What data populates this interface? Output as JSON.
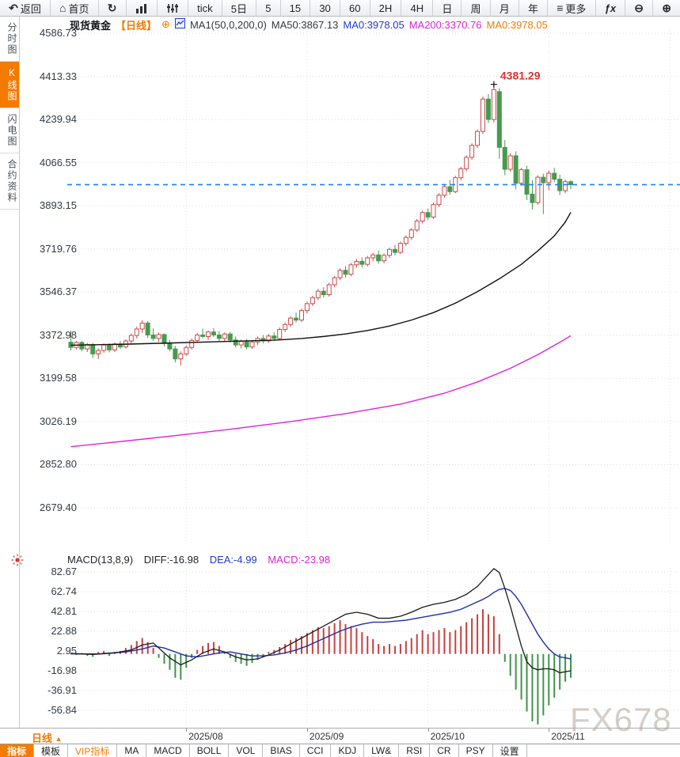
{
  "toolbar": {
    "items": [
      {
        "id": "back",
        "label": "返回",
        "icon": "back-icon"
      },
      {
        "id": "home",
        "label": "首页",
        "icon": "home-icon"
      },
      {
        "id": "refresh",
        "label": "",
        "icon": "refresh-icon"
      },
      {
        "id": "chart-type-bar",
        "label": "",
        "icon": "bar-chart-icon"
      },
      {
        "id": "chart-type-kline",
        "label": "",
        "icon": "kline-icon"
      },
      {
        "id": "tick",
        "label": "tick"
      },
      {
        "id": "5d",
        "label": "5日"
      },
      {
        "id": "5m",
        "label": "5"
      },
      {
        "id": "15m",
        "label": "15"
      },
      {
        "id": "30m",
        "label": "30"
      },
      {
        "id": "60m",
        "label": "60"
      },
      {
        "id": "2h",
        "label": "2H"
      },
      {
        "id": "4h",
        "label": "4H"
      },
      {
        "id": "day",
        "label": "日"
      },
      {
        "id": "week",
        "label": "周"
      },
      {
        "id": "month",
        "label": "月"
      },
      {
        "id": "year",
        "label": "年"
      },
      {
        "id": "more",
        "label": "更多",
        "icon": "menu-icon"
      },
      {
        "id": "formula",
        "label": "ƒx"
      },
      {
        "id": "zoom-out",
        "label": "",
        "icon": "zoom-out-icon"
      },
      {
        "id": "zoom-in",
        "label": "",
        "icon": "zoom-in-icon"
      }
    ]
  },
  "sidebar": {
    "items": [
      {
        "id": "time-share",
        "label": "分时图",
        "active": false
      },
      {
        "id": "kline",
        "label": "K线图",
        "active": true
      },
      {
        "id": "lightning",
        "label": "闪电图",
        "active": false
      },
      {
        "id": "contract-info",
        "label": "合约资料",
        "active": false
      }
    ]
  },
  "chart_header": {
    "symbol": "现货黄金",
    "period_tag": "【日线】",
    "ma_settings": "MA1(50,0,200,0)",
    "ma50_label": "MA50:3867.13",
    "ma0_blue": "MA0:3978.05",
    "ma200_label": "MA200:3370.76",
    "ma0_orange": "MA0:3978.05"
  },
  "macd_header": {
    "title": "MACD(13,8,9)",
    "diff_label": "DIFF:-16.98",
    "dea_label": "DEA:-4.99",
    "macd_label": "MACD:-23.98"
  },
  "bottom_axis": {
    "period_label": "日线",
    "watermark": "FX678"
  },
  "indicator_tabs": {
    "items": [
      {
        "id": "indicator",
        "label": "指标",
        "state": "active"
      },
      {
        "id": "template",
        "label": "模板",
        "state": "normal"
      },
      {
        "id": "vip-indicator",
        "label": "VIP指标",
        "state": "vip"
      },
      {
        "id": "ma",
        "label": "MA",
        "state": "normal"
      },
      {
        "id": "macd",
        "label": "MACD",
        "state": "normal"
      },
      {
        "id": "boll",
        "label": "BOLL",
        "state": "normal"
      },
      {
        "id": "vol",
        "label": "VOL",
        "state": "normal"
      },
      {
        "id": "bias",
        "label": "BIAS",
        "state": "normal"
      },
      {
        "id": "cci",
        "label": "CCI",
        "state": "normal"
      },
      {
        "id": "kdj",
        "label": "KDJ",
        "state": "normal"
      },
      {
        "id": "lwr",
        "label": "LW&",
        "state": "normal"
      },
      {
        "id": "rsi",
        "label": "RSI",
        "state": "normal"
      },
      {
        "id": "cr",
        "label": "CR",
        "state": "normal"
      },
      {
        "id": "psy",
        "label": "PSY",
        "state": "normal"
      },
      {
        "id": "settings",
        "label": "设置",
        "state": "normal"
      }
    ]
  },
  "chart_data": {
    "type": "candlestick",
    "title": "现货黄金 日线 (Spot Gold Daily)",
    "legend_position": "top",
    "grid": true,
    "colors": {
      "up": "#c94b4b",
      "down": "#469a4e",
      "ma50": "#111111",
      "ma200": "#e020e0",
      "current_price_line": "#1e7eff",
      "diff": "#1a1a1a",
      "dea": "#1b2fa8",
      "hist_pos": "#c84040",
      "hist_neg": "#3f9447",
      "grid": "#e2ded8",
      "accent_orange": "#f57b00",
      "accent_blue": "#2438d2",
      "accent_magenta": "#dd22dd"
    },
    "y_ticks": [
      "4586.73",
      "4413.33",
      "4239.94",
      "4066.55",
      "3893.15",
      "3719.76",
      "3546.37",
      "3372.98",
      "3199.58",
      "3026.19",
      "2852.80",
      "2679.40"
    ],
    "ylim": [
      2630,
      4640
    ],
    "x_tick_labels": [
      "2025/08",
      "2025/09",
      "2025/10",
      "2025/11"
    ],
    "x_tick_indices": [
      21,
      43,
      65,
      87
    ],
    "x_grid_indices": [
      21,
      43,
      65,
      87,
      109
    ],
    "current_price": 3978.05,
    "high_annotation": {
      "value": "4381.29",
      "index": 77,
      "price": 4381.29
    },
    "candles": [
      [
        3345,
        3392,
        3312,
        3324
      ],
      [
        3324,
        3350,
        3316,
        3344
      ],
      [
        3344,
        3350,
        3308,
        3318
      ],
      [
        3318,
        3342,
        3306,
        3336
      ],
      [
        3336,
        3342,
        3282,
        3298
      ],
      [
        3298,
        3320,
        3278,
        3312
      ],
      [
        3312,
        3340,
        3302,
        3334
      ],
      [
        3334,
        3340,
        3304,
        3314
      ],
      [
        3314,
        3344,
        3306,
        3338
      ],
      [
        3338,
        3350,
        3318,
        3326
      ],
      [
        3326,
        3356,
        3320,
        3350
      ],
      [
        3350,
        3380,
        3340,
        3372
      ],
      [
        3372,
        3408,
        3360,
        3398
      ],
      [
        3398,
        3433,
        3382,
        3422
      ],
      [
        3422,
        3430,
        3362,
        3374
      ],
      [
        3374,
        3400,
        3350,
        3360
      ],
      [
        3360,
        3384,
        3346,
        3376
      ],
      [
        3376,
        3380,
        3328,
        3340
      ],
      [
        3340,
        3354,
        3308,
        3318
      ],
      [
        3318,
        3330,
        3264,
        3278
      ],
      [
        3278,
        3308,
        3252,
        3298
      ],
      [
        3298,
        3332,
        3290,
        3324
      ],
      [
        3324,
        3360,
        3316,
        3352
      ],
      [
        3352,
        3382,
        3344,
        3374
      ],
      [
        3374,
        3400,
        3362,
        3368
      ],
      [
        3368,
        3392,
        3354,
        3386
      ],
      [
        3386,
        3402,
        3366,
        3374
      ],
      [
        3374,
        3390,
        3350,
        3360
      ],
      [
        3360,
        3384,
        3348,
        3378
      ],
      [
        3378,
        3386,
        3344,
        3354
      ],
      [
        3354,
        3368,
        3324,
        3334
      ],
      [
        3334,
        3356,
        3320,
        3348
      ],
      [
        3348,
        3358,
        3316,
        3326
      ],
      [
        3326,
        3354,
        3318,
        3346
      ],
      [
        3346,
        3368,
        3334,
        3360
      ],
      [
        3360,
        3374,
        3340,
        3350
      ],
      [
        3350,
        3378,
        3342,
        3370
      ],
      [
        3370,
        3384,
        3350,
        3360
      ],
      [
        3360,
        3404,
        3354,
        3396
      ],
      [
        3396,
        3424,
        3386,
        3416
      ],
      [
        3416,
        3450,
        3406,
        3442
      ],
      [
        3442,
        3464,
        3424,
        3434
      ],
      [
        3434,
        3480,
        3426,
        3472
      ],
      [
        3472,
        3508,
        3460,
        3500
      ],
      [
        3500,
        3532,
        3490,
        3524
      ],
      [
        3524,
        3560,
        3514,
        3550
      ],
      [
        3550,
        3566,
        3524,
        3536
      ],
      [
        3536,
        3584,
        3528,
        3576
      ],
      [
        3576,
        3612,
        3566,
        3604
      ],
      [
        3604,
        3642,
        3594,
        3634
      ],
      [
        3634,
        3650,
        3604,
        3618
      ],
      [
        3618,
        3664,
        3610,
        3656
      ],
      [
        3656,
        3680,
        3644,
        3670
      ],
      [
        3670,
        3686,
        3646,
        3658
      ],
      [
        3658,
        3692,
        3650,
        3684
      ],
      [
        3684,
        3704,
        3670,
        3696
      ],
      [
        3696,
        3714,
        3660,
        3672
      ],
      [
        3672,
        3702,
        3662,
        3694
      ],
      [
        3694,
        3726,
        3684,
        3718
      ],
      [
        3718,
        3736,
        3694,
        3706
      ],
      [
        3706,
        3750,
        3700,
        3742
      ],
      [
        3742,
        3774,
        3732,
        3766
      ],
      [
        3766,
        3804,
        3756,
        3796
      ],
      [
        3796,
        3840,
        3788,
        3832
      ],
      [
        3832,
        3874,
        3822,
        3866
      ],
      [
        3866,
        3882,
        3836,
        3848
      ],
      [
        3848,
        3906,
        3840,
        3898
      ],
      [
        3898,
        3944,
        3888,
        3936
      ],
      [
        3936,
        3980,
        3926,
        3970
      ],
      [
        3970,
        3998,
        3938,
        3950
      ],
      [
        3950,
        4014,
        3944,
        4006
      ],
      [
        4006,
        4050,
        3996,
        4042
      ],
      [
        4042,
        4096,
        4032,
        4088
      ],
      [
        4088,
        4144,
        4078,
        4136
      ],
      [
        4136,
        4200,
        4126,
        4192
      ],
      [
        4192,
        4332,
        4182,
        4322
      ],
      [
        4322,
        4342,
        4226,
        4240
      ],
      [
        4240,
        4381.29,
        4228,
        4360
      ],
      [
        4352,
        4366,
        4082,
        4128
      ],
      [
        4128,
        4158,
        4016,
        4040
      ],
      [
        4040,
        4104,
        4030,
        4094
      ],
      [
        4094,
        4112,
        3960,
        3984
      ],
      [
        3984,
        4046,
        3974,
        4038
      ],
      [
        4038,
        4054,
        3916,
        3940
      ],
      [
        3940,
        3996,
        3878,
        3906
      ],
      [
        3906,
        4016,
        3898,
        4008
      ],
      [
        4008,
        4022,
        3860,
        3986
      ],
      [
        3986,
        4034,
        3956,
        4024
      ],
      [
        4024,
        4046,
        3988,
        4000
      ],
      [
        4000,
        4018,
        3936,
        3954
      ],
      [
        3954,
        3999,
        3944,
        3990
      ],
      [
        3990,
        3996,
        3960,
        3978
      ]
    ],
    "ma50_points": [
      [
        0,
        3333
      ],
      [
        10,
        3337
      ],
      [
        20,
        3343
      ],
      [
        30,
        3349
      ],
      [
        37,
        3353
      ],
      [
        42,
        3360
      ],
      [
        46,
        3368
      ],
      [
        50,
        3378
      ],
      [
        54,
        3392
      ],
      [
        58,
        3410
      ],
      [
        62,
        3434
      ],
      [
        66,
        3464
      ],
      [
        70,
        3502
      ],
      [
        74,
        3548
      ],
      [
        78,
        3600
      ],
      [
        82,
        3658
      ],
      [
        85,
        3712
      ],
      [
        88,
        3772
      ],
      [
        90,
        3828
      ],
      [
        91,
        3867
      ]
    ],
    "ma200_points": [
      [
        0,
        2925
      ],
      [
        10,
        2948
      ],
      [
        20,
        2972
      ],
      [
        30,
        2998
      ],
      [
        40,
        3026
      ],
      [
        50,
        3058
      ],
      [
        60,
        3096
      ],
      [
        68,
        3140
      ],
      [
        74,
        3185
      ],
      [
        80,
        3240
      ],
      [
        85,
        3295
      ],
      [
        89,
        3345
      ],
      [
        91,
        3371
      ]
    ],
    "macd": {
      "params": "(13,8,9)",
      "y_ticks": [
        "82.67",
        "62.74",
        "42.81",
        "22.88",
        "2.95",
        "-16.98",
        "-36.91",
        "-56.84"
      ],
      "hist": [
        1,
        -1,
        1,
        -2,
        -3,
        2,
        3,
        -2,
        2,
        3,
        6,
        9,
        13,
        16,
        12,
        6,
        -4,
        -10,
        -16,
        -24,
        -26,
        -14,
        -4,
        4,
        8,
        11,
        12,
        8,
        2,
        -4,
        -8,
        -10,
        -12,
        -9,
        -6,
        -3,
        2,
        4,
        7,
        10,
        14,
        16,
        18,
        21,
        24,
        27,
        26,
        28,
        31,
        34,
        30,
        28,
        26,
        22,
        18,
        15,
        10,
        8,
        10,
        8,
        10,
        13,
        16,
        20,
        24,
        20,
        22,
        24,
        26,
        22,
        24,
        28,
        32,
        36,
        40,
        45,
        40,
        38,
        20,
        -8,
        -22,
        -36,
        -46,
        -58,
        -68,
        -71,
        -62,
        -52,
        -44,
        -36,
        -28,
        -24
      ],
      "diff_points": [
        [
          0,
          0.5
        ],
        [
          4,
          -0.5
        ],
        [
          8,
          1
        ],
        [
          11,
          4
        ],
        [
          13,
          9
        ],
        [
          15,
          11
        ],
        [
          16,
          6
        ],
        [
          18,
          -4
        ],
        [
          20,
          -11
        ],
        [
          22,
          -6
        ],
        [
          24,
          1
        ],
        [
          26,
          5
        ],
        [
          28,
          2
        ],
        [
          30,
          -3
        ],
        [
          32,
          -6
        ],
        [
          34,
          -5
        ],
        [
          36,
          -1
        ],
        [
          38,
          4
        ],
        [
          40,
          10
        ],
        [
          42,
          16
        ],
        [
          44,
          22
        ],
        [
          46,
          28
        ],
        [
          48,
          34
        ],
        [
          50,
          40
        ],
        [
          52,
          42
        ],
        [
          54,
          40
        ],
        [
          56,
          36
        ],
        [
          58,
          36
        ],
        [
          60,
          38
        ],
        [
          62,
          42
        ],
        [
          64,
          47
        ],
        [
          66,
          50
        ],
        [
          68,
          52
        ],
        [
          70,
          55
        ],
        [
          72,
          60
        ],
        [
          74,
          68
        ],
        [
          76,
          80
        ],
        [
          77,
          86
        ],
        [
          78,
          82
        ],
        [
          79,
          66
        ],
        [
          80,
          48
        ],
        [
          81,
          28
        ],
        [
          82,
          8
        ],
        [
          83,
          -8
        ],
        [
          84,
          -14
        ],
        [
          85,
          -16
        ],
        [
          86,
          -15
        ],
        [
          87,
          -15
        ],
        [
          88,
          -16
        ],
        [
          89,
          -19
        ],
        [
          90,
          -18
        ],
        [
          91,
          -17
        ]
      ],
      "dea_points": [
        [
          0,
          0
        ],
        [
          5,
          0
        ],
        [
          10,
          2
        ],
        [
          13,
          5
        ],
        [
          15,
          8
        ],
        [
          17,
          6
        ],
        [
          19,
          2
        ],
        [
          21,
          -2
        ],
        [
          23,
          -3
        ],
        [
          25,
          -1
        ],
        [
          27,
          1
        ],
        [
          29,
          2
        ],
        [
          31,
          0
        ],
        [
          33,
          -2
        ],
        [
          35,
          -2
        ],
        [
          37,
          -1
        ],
        [
          39,
          1
        ],
        [
          41,
          4
        ],
        [
          43,
          8
        ],
        [
          45,
          13
        ],
        [
          47,
          18
        ],
        [
          49,
          23
        ],
        [
          51,
          27
        ],
        [
          53,
          30
        ],
        [
          55,
          32
        ],
        [
          57,
          32
        ],
        [
          59,
          33
        ],
        [
          61,
          34
        ],
        [
          63,
          36
        ],
        [
          65,
          38
        ],
        [
          67,
          40
        ],
        [
          69,
          42
        ],
        [
          71,
          45
        ],
        [
          73,
          50
        ],
        [
          75,
          55
        ],
        [
          76,
          58
        ],
        [
          77,
          62
        ],
        [
          78,
          65
        ],
        [
          79,
          66
        ],
        [
          80,
          64
        ],
        [
          81,
          58
        ],
        [
          82,
          50
        ],
        [
          83,
          40
        ],
        [
          84,
          30
        ],
        [
          85,
          20
        ],
        [
          86,
          12
        ],
        [
          87,
          5
        ],
        [
          88,
          0
        ],
        [
          89,
          -3
        ],
        [
          90,
          -4
        ],
        [
          91,
          -5
        ]
      ]
    }
  }
}
